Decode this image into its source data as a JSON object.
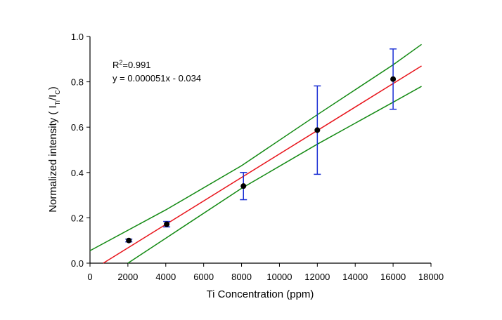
{
  "chart_data": {
    "type": "scatter",
    "xlabel": "Ti Concentration (ppm)",
    "ylabel": [
      "Normalized intensity ( I",
      "Ti",
      "/I",
      "C",
      ")"
    ],
    "annotations": [
      [
        "R",
        "2",
        "=0.991"
      ],
      [
        "y = 0.000051x - 0.034"
      ]
    ],
    "xlim": [
      0,
      18000
    ],
    "xticks": [
      0,
      2000,
      4000,
      6000,
      8000,
      10000,
      12000,
      14000,
      16000,
      18000
    ],
    "ylim": [
      0,
      1
    ],
    "yticks": [
      {
        "value": 0,
        "label": "0.0"
      },
      0.2,
      0.4,
      0.6,
      0.8,
      {
        "value": 1,
        "label": "1.0"
      }
    ],
    "points": {
      "x": [
        2050,
        4050,
        8100,
        12000,
        16000
      ],
      "values": [
        0.1,
        0.172,
        0.34,
        0.587,
        0.812
      ],
      "errors": [
        0.006,
        0.012,
        0.06,
        0.195,
        0.133
      ],
      "color": "#000000",
      "error_color": "#1a2fd4"
    },
    "fit": {
      "x": [
        700,
        17500
      ],
      "values": [
        0,
        0.87
      ],
      "color": "#e8141b"
    },
    "bands": [
      {
        "x": [
          0,
          4000,
          8000,
          12000,
          16000,
          17500
        ],
        "values": [
          0.055,
          0.235,
          0.43,
          0.655,
          0.875,
          0.965
        ],
        "color": "#138a13"
      },
      {
        "x": [
          2000,
          4000,
          8000,
          12000,
          16000,
          17500
        ],
        "values": [
          0,
          0.11,
          0.33,
          0.525,
          0.71,
          0.78
        ],
        "color": "#138a13"
      }
    ]
  }
}
